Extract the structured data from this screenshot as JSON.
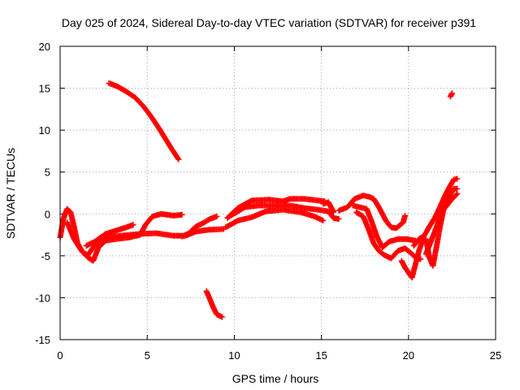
{
  "chart_data": {
    "type": "scatter",
    "title": "Day 025 of 2024, Sidereal Day-to-day VTEC variation (SDTVAR) for receiver p391",
    "xlabel": "GPS time / hours",
    "ylabel": "SDTVAR / TECUs",
    "xlim": [
      0,
      25
    ],
    "ylim": [
      -15,
      20
    ],
    "xticks": [
      "0",
      "5",
      "10",
      "15",
      "20",
      "25"
    ],
    "yticks": [
      "-15",
      "-10",
      "-5",
      "0",
      "5",
      "10",
      "15",
      "20"
    ],
    "grid": true,
    "marker": "+",
    "color": "#ff0000",
    "series": [
      {
        "name": "arc-1",
        "points": [
          [
            2.8,
            15.6
          ],
          [
            3.3,
            15.2
          ],
          [
            3.8,
            14.6
          ],
          [
            4.3,
            13.9
          ],
          [
            4.8,
            12.8
          ],
          [
            5.3,
            11.4
          ],
          [
            5.8,
            9.8
          ],
          [
            6.3,
            8.1
          ],
          [
            6.8,
            6.5
          ]
        ]
      },
      {
        "name": "arc-2",
        "points": [
          [
            8.4,
            -9.2
          ],
          [
            8.6,
            -10.2
          ],
          [
            8.8,
            -11.2
          ],
          [
            9.0,
            -12.0
          ],
          [
            9.3,
            -12.3
          ]
        ]
      },
      {
        "name": "arc-3",
        "points": [
          [
            22.4,
            14.0
          ],
          [
            22.5,
            14.4
          ]
        ]
      },
      {
        "name": "arc-4",
        "points": [
          [
            0,
            -2.8
          ],
          [
            0.2,
            -0.5
          ],
          [
            0.4,
            0.6
          ],
          [
            0.6,
            0.2
          ],
          [
            0.8,
            -1.5
          ],
          [
            1.0,
            -3.5
          ],
          [
            1.3,
            -4.6
          ],
          [
            1.6,
            -4.9
          ],
          [
            1.9,
            -4.0
          ],
          [
            2.3,
            -3.0
          ],
          [
            2.8,
            -2.8
          ],
          [
            3.5,
            -2.6
          ],
          [
            4.5,
            -2.4
          ],
          [
            5.5,
            -2.3
          ],
          [
            6.5,
            -2.6
          ],
          [
            7.2,
            -2.6
          ],
          [
            7.8,
            -2.1
          ],
          [
            8.5,
            -1.9
          ],
          [
            9.4,
            -1.8
          ]
        ]
      },
      {
        "name": "arc-5",
        "points": [
          [
            0.4,
            -1.0
          ],
          [
            0.8,
            -3.0
          ],
          [
            1.2,
            -4.3
          ],
          [
            1.6,
            -5.2
          ],
          [
            1.9,
            -5.6
          ],
          [
            2.2,
            -4.0
          ],
          [
            2.6,
            -3.2
          ],
          [
            3.2,
            -3.0
          ],
          [
            4.0,
            -2.8
          ],
          [
            4.6,
            -2.5
          ],
          [
            4.9,
            -1.3
          ],
          [
            5.3,
            -0.3
          ],
          [
            5.8,
            0
          ],
          [
            6.5,
            -0.2
          ],
          [
            7.0,
            -0.1
          ]
        ]
      },
      {
        "name": "arc-6",
        "points": [
          [
            1.5,
            -3.8
          ],
          [
            2.0,
            -3.3
          ],
          [
            2.6,
            -2.4
          ],
          [
            3.2,
            -2.0
          ],
          [
            3.8,
            -1.6
          ],
          [
            4.2,
            -1.3
          ]
        ]
      },
      {
        "name": "arc-7",
        "points": [
          [
            7.0,
            -2.7
          ],
          [
            7.4,
            -2.3
          ],
          [
            7.8,
            -1.5
          ],
          [
            8.2,
            -1.1
          ],
          [
            8.6,
            -0.6
          ],
          [
            9.0,
            -0.3
          ]
        ]
      },
      {
        "name": "arc-8",
        "points": [
          [
            9.6,
            -0.5
          ],
          [
            10.2,
            0.7
          ],
          [
            11.0,
            1.6
          ],
          [
            12.0,
            1.7
          ],
          [
            12.8,
            1.5
          ],
          [
            13.2,
            1.8
          ],
          [
            14.0,
            1.8
          ],
          [
            14.8,
            1.6
          ],
          [
            15.2,
            1.5
          ]
        ]
      },
      {
        "name": "arc-9",
        "points": [
          [
            9.5,
            -1.6
          ],
          [
            10.2,
            -0.8
          ],
          [
            11.0,
            -0.4
          ],
          [
            11.8,
            0.3
          ],
          [
            12.8,
            0.5
          ],
          [
            13.8,
            0.2
          ],
          [
            14.6,
            -0.3
          ],
          [
            15.1,
            -0.8
          ]
        ]
      },
      {
        "name": "arc-10",
        "points": [
          [
            9.8,
            -0.2
          ],
          [
            10.6,
            0.8
          ],
          [
            11.4,
            1.0
          ],
          [
            12.4,
            1.0
          ],
          [
            13.2,
            1.0
          ],
          [
            14.0,
            0.7
          ],
          [
            14.8,
            0.5
          ],
          [
            15.4,
            0.3
          ],
          [
            15.7,
            -0.5
          ],
          [
            16.0,
            -0.6
          ]
        ]
      },
      {
        "name": "arc-11",
        "points": [
          [
            15.1,
            1.2
          ],
          [
            15.4,
            1.4
          ],
          [
            15.7,
            0.2
          ]
        ]
      },
      {
        "name": "arc-12",
        "points": [
          [
            16.0,
            0.4
          ],
          [
            16.5,
            0.8
          ],
          [
            16.9,
            1.8
          ],
          [
            17.4,
            2.2
          ],
          [
            17.8,
            2.0
          ],
          [
            18.0,
            1.8
          ],
          [
            18.3,
            0.8
          ],
          [
            18.7,
            -0.8
          ],
          [
            19.0,
            -1.6
          ],
          [
            19.3,
            -1.7
          ],
          [
            19.7,
            -1.0
          ],
          [
            19.8,
            -0.2
          ]
        ]
      },
      {
        "name": "arc-13",
        "points": [
          [
            16.8,
            1.0
          ],
          [
            17.2,
            0.8
          ],
          [
            17.6,
            0.6
          ],
          [
            17.9,
            -1.0
          ],
          [
            18.2,
            -2.8
          ],
          [
            18.5,
            -4.0
          ],
          [
            18.9,
            -3.3
          ],
          [
            19.4,
            -3.0
          ],
          [
            19.9,
            -3.0
          ],
          [
            20.4,
            -3.2
          ]
        ]
      },
      {
        "name": "arc-14",
        "points": [
          [
            17.0,
            0.2
          ],
          [
            17.4,
            -0.3
          ],
          [
            17.7,
            -1.8
          ],
          [
            18.0,
            -3.5
          ],
          [
            18.3,
            -4.4
          ],
          [
            18.6,
            -4.9
          ],
          [
            19.0,
            -5.3
          ],
          [
            19.4,
            -4.4
          ],
          [
            19.8,
            -4.1
          ],
          [
            20.1,
            -4.6
          ],
          [
            20.4,
            -5.2
          ],
          [
            20.7,
            -5.4
          ]
        ]
      },
      {
        "name": "arc-15",
        "points": [
          [
            19.6,
            -5.6
          ],
          [
            19.8,
            -6.4
          ],
          [
            20.0,
            -7.0
          ],
          [
            20.2,
            -7.6
          ],
          [
            20.4,
            -6.0
          ],
          [
            20.6,
            -4.4
          ],
          [
            20.8,
            -3.2
          ],
          [
            21.0,
            -3.0
          ],
          [
            21.2,
            -5.2
          ],
          [
            21.4,
            -6.2
          ],
          [
            21.6,
            -4.0
          ],
          [
            21.8,
            -1.6
          ],
          [
            22.0,
            0.4
          ],
          [
            22.3,
            2.0
          ],
          [
            22.6,
            3.0
          ],
          [
            22.8,
            3.0
          ]
        ]
      },
      {
        "name": "arc-16",
        "points": [
          [
            20.3,
            -3.8
          ],
          [
            20.6,
            -3.0
          ],
          [
            20.9,
            -2.6
          ],
          [
            21.2,
            -1.5
          ],
          [
            21.5,
            -0.5
          ],
          [
            21.8,
            0.8
          ],
          [
            22.1,
            2.2
          ],
          [
            22.4,
            3.4
          ],
          [
            22.6,
            4.1
          ],
          [
            22.8,
            4.2
          ]
        ]
      },
      {
        "name": "arc-17",
        "points": [
          [
            21.0,
            -4.8
          ],
          [
            21.3,
            -3.2
          ],
          [
            21.6,
            -1.6
          ],
          [
            21.9,
            0.2
          ],
          [
            22.2,
            1.0
          ],
          [
            22.5,
            1.8
          ],
          [
            22.8,
            2.4
          ]
        ]
      }
    ]
  }
}
